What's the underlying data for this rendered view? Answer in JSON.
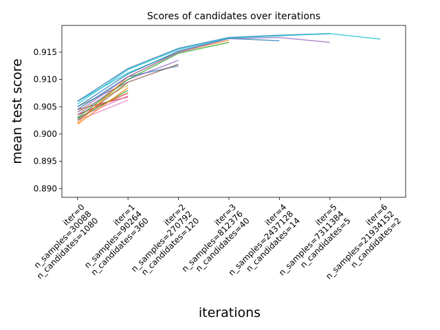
{
  "chart_data": {
    "type": "line",
    "title": "Scores of candidates over iterations",
    "xlabel": "iterations",
    "ylabel": "mean test score",
    "categories": [
      [
        "iter=0",
        "n_samples=30088",
        "n_candidates=1080"
      ],
      [
        "iter=1",
        "n_samples=90264",
        "n_candidates=360"
      ],
      [
        "iter=2",
        "n_samples=270792",
        "n_candidates=120"
      ],
      [
        "iter=3",
        "n_samples=812376",
        "n_candidates=40"
      ],
      [
        "iter=4",
        "n_samples=2437128",
        "n_candidates=14"
      ],
      [
        "iter=5",
        "n_samples=7311384",
        "n_candidates=5"
      ],
      [
        "iter=6",
        "n_samples=21934152",
        "n_candidates=2"
      ]
    ],
    "ylim": [
      0.8884,
      0.9199
    ],
    "yticks": [
      {
        "value": 0.89,
        "label": "0.890"
      },
      {
        "value": 0.895,
        "label": "0.895"
      },
      {
        "value": 0.9,
        "label": "0.900"
      },
      {
        "value": 0.905,
        "label": "0.905"
      },
      {
        "value": 0.91,
        "label": "0.910"
      },
      {
        "value": 0.915,
        "label": "0.915"
      }
    ],
    "series": [
      {
        "color": "#e377c2",
        "values": [
          0.9025,
          0.9062,
          null,
          null,
          null,
          null,
          null
        ]
      },
      {
        "color": "#d62728",
        "values": [
          0.9045,
          0.9068,
          null,
          null,
          null,
          null,
          null
        ]
      },
      {
        "color": "#e377c2",
        "values": [
          0.903,
          0.907,
          null,
          null,
          null,
          null,
          null
        ]
      },
      {
        "color": "#d62728",
        "values": [
          0.9035,
          0.9075,
          null,
          null,
          null,
          null,
          null
        ]
      },
      {
        "color": "#2ca02c",
        "values": [
          0.9028,
          0.908,
          null,
          null,
          null,
          null,
          null
        ]
      },
      {
        "color": "#ff7f0e",
        "values": [
          0.9018,
          0.9085,
          null,
          null,
          null,
          null,
          null
        ]
      },
      {
        "color": "#bcbd22",
        "values": [
          0.904,
          0.909,
          null,
          null,
          null,
          null,
          null
        ]
      },
      {
        "color": "#7f7f7f",
        "values": [
          0.905,
          0.9095,
          null,
          null,
          null,
          null,
          null
        ]
      },
      {
        "color": "#1f77b4",
        "values": [
          0.9045,
          0.9105,
          0.9125,
          null,
          null,
          null,
          null
        ]
      },
      {
        "color": "#8c564b",
        "values": [
          0.9025,
          0.9095,
          0.9128,
          null,
          null,
          null,
          null
        ]
      },
      {
        "color": "#9467bd",
        "values": [
          0.9035,
          0.91,
          0.9135,
          null,
          null,
          null,
          null
        ]
      },
      {
        "color": "#17becf",
        "values": [
          0.906,
          0.9112,
          0.915,
          null,
          null,
          null,
          null
        ]
      },
      {
        "color": "#2ca02c",
        "values": [
          0.903,
          0.91,
          0.9148,
          0.9168,
          null,
          null,
          null
        ]
      },
      {
        "color": "#ff7f0e",
        "values": [
          0.902,
          0.9105,
          0.915,
          0.9172,
          null,
          null,
          null
        ]
      },
      {
        "color": "#1f77b4",
        "values": [
          0.905,
          0.911,
          0.9152,
          0.9175,
          0.9171,
          null,
          null
        ]
      },
      {
        "color": "#9467bd",
        "values": [
          0.904,
          0.9105,
          0.915,
          0.9175,
          0.9177,
          0.9168,
          null
        ]
      },
      {
        "color": "#1f77b4",
        "values": [
          0.906,
          0.912,
          0.9157,
          0.9177,
          0.9181,
          0.9184,
          null
        ]
      },
      {
        "color": "#17becf",
        "values": [
          0.9055,
          0.9118,
          0.9155,
          0.9176,
          0.918,
          0.9184,
          0.9174
        ]
      }
    ]
  }
}
